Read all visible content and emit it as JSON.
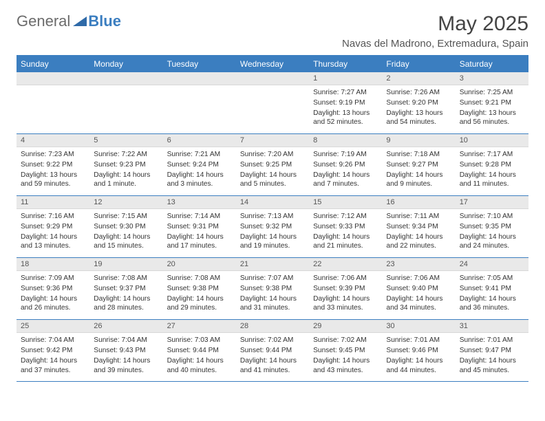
{
  "brand": {
    "part1": "General",
    "part2": "Blue"
  },
  "title": "May 2025",
  "location": "Navas del Madrono, Extremadura, Spain",
  "colors": {
    "header_bg": "#3b7ec0",
    "daynum_bg": "#e9e9e9",
    "rule": "#3b7ec0",
    "text": "#333333"
  },
  "font": {
    "title_size": 30,
    "body_size": 10.2,
    "header_size": 12
  },
  "dayNames": [
    "Sunday",
    "Monday",
    "Tuesday",
    "Wednesday",
    "Thursday",
    "Friday",
    "Saturday"
  ],
  "weeks": [
    [
      null,
      null,
      null,
      null,
      {
        "n": "1",
        "sr": "Sunrise: 7:27 AM",
        "ss": "Sunset: 9:19 PM",
        "dl": "Daylight: 13 hours and 52 minutes."
      },
      {
        "n": "2",
        "sr": "Sunrise: 7:26 AM",
        "ss": "Sunset: 9:20 PM",
        "dl": "Daylight: 13 hours and 54 minutes."
      },
      {
        "n": "3",
        "sr": "Sunrise: 7:25 AM",
        "ss": "Sunset: 9:21 PM",
        "dl": "Daylight: 13 hours and 56 minutes."
      }
    ],
    [
      {
        "n": "4",
        "sr": "Sunrise: 7:23 AM",
        "ss": "Sunset: 9:22 PM",
        "dl": "Daylight: 13 hours and 59 minutes."
      },
      {
        "n": "5",
        "sr": "Sunrise: 7:22 AM",
        "ss": "Sunset: 9:23 PM",
        "dl": "Daylight: 14 hours and 1 minute."
      },
      {
        "n": "6",
        "sr": "Sunrise: 7:21 AM",
        "ss": "Sunset: 9:24 PM",
        "dl": "Daylight: 14 hours and 3 minutes."
      },
      {
        "n": "7",
        "sr": "Sunrise: 7:20 AM",
        "ss": "Sunset: 9:25 PM",
        "dl": "Daylight: 14 hours and 5 minutes."
      },
      {
        "n": "8",
        "sr": "Sunrise: 7:19 AM",
        "ss": "Sunset: 9:26 PM",
        "dl": "Daylight: 14 hours and 7 minutes."
      },
      {
        "n": "9",
        "sr": "Sunrise: 7:18 AM",
        "ss": "Sunset: 9:27 PM",
        "dl": "Daylight: 14 hours and 9 minutes."
      },
      {
        "n": "10",
        "sr": "Sunrise: 7:17 AM",
        "ss": "Sunset: 9:28 PM",
        "dl": "Daylight: 14 hours and 11 minutes."
      }
    ],
    [
      {
        "n": "11",
        "sr": "Sunrise: 7:16 AM",
        "ss": "Sunset: 9:29 PM",
        "dl": "Daylight: 14 hours and 13 minutes."
      },
      {
        "n": "12",
        "sr": "Sunrise: 7:15 AM",
        "ss": "Sunset: 9:30 PM",
        "dl": "Daylight: 14 hours and 15 minutes."
      },
      {
        "n": "13",
        "sr": "Sunrise: 7:14 AM",
        "ss": "Sunset: 9:31 PM",
        "dl": "Daylight: 14 hours and 17 minutes."
      },
      {
        "n": "14",
        "sr": "Sunrise: 7:13 AM",
        "ss": "Sunset: 9:32 PM",
        "dl": "Daylight: 14 hours and 19 minutes."
      },
      {
        "n": "15",
        "sr": "Sunrise: 7:12 AM",
        "ss": "Sunset: 9:33 PM",
        "dl": "Daylight: 14 hours and 21 minutes."
      },
      {
        "n": "16",
        "sr": "Sunrise: 7:11 AM",
        "ss": "Sunset: 9:34 PM",
        "dl": "Daylight: 14 hours and 22 minutes."
      },
      {
        "n": "17",
        "sr": "Sunrise: 7:10 AM",
        "ss": "Sunset: 9:35 PM",
        "dl": "Daylight: 14 hours and 24 minutes."
      }
    ],
    [
      {
        "n": "18",
        "sr": "Sunrise: 7:09 AM",
        "ss": "Sunset: 9:36 PM",
        "dl": "Daylight: 14 hours and 26 minutes."
      },
      {
        "n": "19",
        "sr": "Sunrise: 7:08 AM",
        "ss": "Sunset: 9:37 PM",
        "dl": "Daylight: 14 hours and 28 minutes."
      },
      {
        "n": "20",
        "sr": "Sunrise: 7:08 AM",
        "ss": "Sunset: 9:38 PM",
        "dl": "Daylight: 14 hours and 29 minutes."
      },
      {
        "n": "21",
        "sr": "Sunrise: 7:07 AM",
        "ss": "Sunset: 9:38 PM",
        "dl": "Daylight: 14 hours and 31 minutes."
      },
      {
        "n": "22",
        "sr": "Sunrise: 7:06 AM",
        "ss": "Sunset: 9:39 PM",
        "dl": "Daylight: 14 hours and 33 minutes."
      },
      {
        "n": "23",
        "sr": "Sunrise: 7:06 AM",
        "ss": "Sunset: 9:40 PM",
        "dl": "Daylight: 14 hours and 34 minutes."
      },
      {
        "n": "24",
        "sr": "Sunrise: 7:05 AM",
        "ss": "Sunset: 9:41 PM",
        "dl": "Daylight: 14 hours and 36 minutes."
      }
    ],
    [
      {
        "n": "25",
        "sr": "Sunrise: 7:04 AM",
        "ss": "Sunset: 9:42 PM",
        "dl": "Daylight: 14 hours and 37 minutes."
      },
      {
        "n": "26",
        "sr": "Sunrise: 7:04 AM",
        "ss": "Sunset: 9:43 PM",
        "dl": "Daylight: 14 hours and 39 minutes."
      },
      {
        "n": "27",
        "sr": "Sunrise: 7:03 AM",
        "ss": "Sunset: 9:44 PM",
        "dl": "Daylight: 14 hours and 40 minutes."
      },
      {
        "n": "28",
        "sr": "Sunrise: 7:02 AM",
        "ss": "Sunset: 9:44 PM",
        "dl": "Daylight: 14 hours and 41 minutes."
      },
      {
        "n": "29",
        "sr": "Sunrise: 7:02 AM",
        "ss": "Sunset: 9:45 PM",
        "dl": "Daylight: 14 hours and 43 minutes."
      },
      {
        "n": "30",
        "sr": "Sunrise: 7:01 AM",
        "ss": "Sunset: 9:46 PM",
        "dl": "Daylight: 14 hours and 44 minutes."
      },
      {
        "n": "31",
        "sr": "Sunrise: 7:01 AM",
        "ss": "Sunset: 9:47 PM",
        "dl": "Daylight: 14 hours and 45 minutes."
      }
    ]
  ]
}
